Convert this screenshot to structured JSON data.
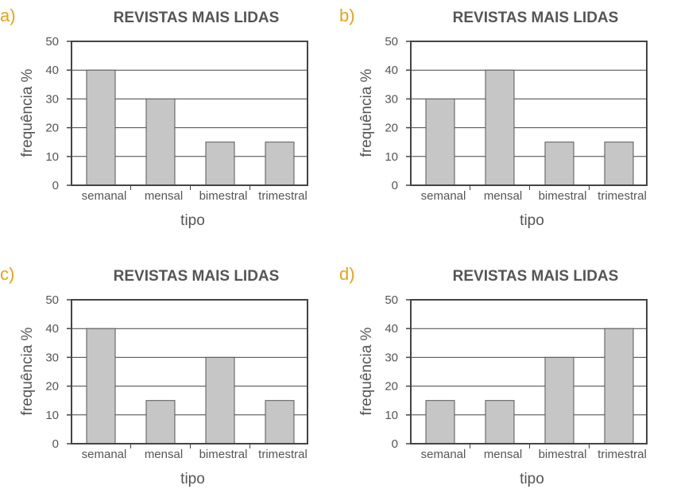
{
  "colors": {
    "letter": "#E8A317",
    "text": "#555555",
    "axis": "#444444",
    "grid": "#444444",
    "bar_fill": "#C6C6C6",
    "bar_stroke": "#555555"
  },
  "chart_data": [
    {
      "panel": "a)",
      "type": "bar",
      "title": "REVISTAS MAIS LIDAS",
      "xlabel": "tipo",
      "ylabel": "frequência %",
      "categories": [
        "semanal",
        "mensal",
        "bimestral",
        "trimestral"
      ],
      "values": [
        40,
        30,
        15,
        15
      ],
      "ylim": [
        0,
        50
      ],
      "yticks": [
        "0",
        "10",
        "20",
        "30",
        "40",
        "50"
      ],
      "grid": true,
      "legend": "none"
    },
    {
      "panel": "b)",
      "type": "bar",
      "title": "REVISTAS MAIS LIDAS",
      "xlabel": "tipo",
      "ylabel": "frequência %",
      "categories": [
        "semanal",
        "mensal",
        "bimestral",
        "trimestral"
      ],
      "values": [
        30,
        40,
        15,
        15
      ],
      "ylim": [
        0,
        50
      ],
      "yticks": [
        "0",
        "10",
        "20",
        "30",
        "40",
        "50"
      ],
      "grid": true,
      "legend": "none"
    },
    {
      "panel": "c)",
      "type": "bar",
      "title": "REVISTAS MAIS LIDAS",
      "xlabel": "tipo",
      "ylabel": "frequência %",
      "categories": [
        "semanal",
        "mensal",
        "bimestral",
        "trimestral"
      ],
      "values": [
        40,
        15,
        30,
        15
      ],
      "ylim": [
        0,
        50
      ],
      "yticks": [
        "0",
        "10",
        "20",
        "30",
        "40",
        "50"
      ],
      "grid": true,
      "legend": "none"
    },
    {
      "panel": "d)",
      "type": "bar",
      "title": "REVISTAS MAIS LIDAS",
      "xlabel": "tipo",
      "ylabel": "frequência %",
      "categories": [
        "semanal",
        "mensal",
        "bimestral",
        "trimestral"
      ],
      "values": [
        15,
        15,
        30,
        40
      ],
      "ylim": [
        0,
        50
      ],
      "yticks": [
        "0",
        "10",
        "20",
        "30",
        "40",
        "50"
      ],
      "grid": true,
      "legend": "none"
    }
  ]
}
